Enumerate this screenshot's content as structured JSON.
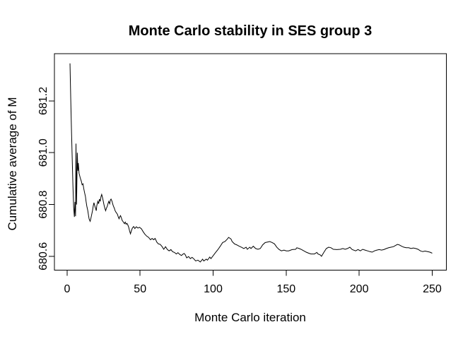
{
  "chart_data": {
    "type": "line",
    "title": "Monte Carlo stability in SES group 3",
    "xlabel": "Monte Carlo iteration",
    "ylabel": "Cumulative average of M",
    "x_ticks": [
      0,
      50,
      100,
      150,
      200,
      250
    ],
    "x_tick_labels": [
      "0",
      "50",
      "100",
      "150",
      "200",
      "250"
    ],
    "y_ticks": [
      680.6,
      680.8,
      681.0,
      681.2
    ],
    "y_tick_labels": [
      "680.6",
      "680.8",
      "681.0",
      "681.2"
    ],
    "xlim": [
      -8.66,
      259.7
    ],
    "ylim": [
      680.5465,
      681.3825
    ],
    "grid": false,
    "legend": "none",
    "line_color": "#000000",
    "axis_color": "#000000",
    "background_color": "#ffffff",
    "series": [
      {
        "name": "cumulative-average-of-M",
        "points": [
          [
            2,
            681.345
          ],
          [
            2.5,
            681.21
          ],
          [
            3,
            681.09
          ],
          [
            3.5,
            680.98
          ],
          [
            4,
            680.875
          ],
          [
            4.5,
            680.79
          ],
          [
            5,
            680.752
          ],
          [
            5.4,
            680.81
          ],
          [
            5.8,
            680.755
          ],
          [
            6.1,
            681.035
          ],
          [
            6.5,
            680.8
          ],
          [
            7,
            681.0
          ],
          [
            7.4,
            680.93
          ],
          [
            7.7,
            680.96
          ],
          [
            8.2,
            680.921
          ],
          [
            9,
            680.903
          ],
          [
            9.8,
            680.889
          ],
          [
            10.3,
            680.876
          ],
          [
            10.9,
            680.88
          ],
          [
            11.4,
            680.862
          ],
          [
            11.9,
            680.848
          ],
          [
            12.6,
            680.83
          ],
          [
            13,
            680.812
          ],
          [
            13.5,
            680.794
          ],
          [
            14.2,
            680.776
          ],
          [
            14.7,
            680.757
          ],
          [
            15.1,
            680.744
          ],
          [
            15.8,
            680.735
          ],
          [
            16.2,
            680.744
          ],
          [
            16.7,
            680.757
          ],
          [
            17.4,
            680.776
          ],
          [
            17.9,
            680.794
          ],
          [
            18.4,
            680.807
          ],
          [
            19,
            680.794
          ],
          [
            19.5,
            680.785
          ],
          [
            20,
            680.776
          ],
          [
            20.3,
            680.794
          ],
          [
            21.1,
            680.812
          ],
          [
            21.6,
            680.803
          ],
          [
            22.2,
            680.821
          ],
          [
            22.7,
            680.812
          ],
          [
            23.2,
            680.83
          ],
          [
            23.7,
            680.839
          ],
          [
            24.3,
            680.826
          ],
          [
            24.8,
            680.812
          ],
          [
            25.3,
            680.798
          ],
          [
            25.9,
            680.785
          ],
          [
            26.4,
            680.776
          ],
          [
            26.9,
            680.785
          ],
          [
            27.6,
            680.794
          ],
          [
            28,
            680.803
          ],
          [
            28.5,
            680.812
          ],
          [
            29.2,
            680.803
          ],
          [
            29.6,
            680.817
          ],
          [
            30.1,
            680.821
          ],
          [
            30.8,
            680.812
          ],
          [
            31.2,
            680.803
          ],
          [
            31.7,
            680.794
          ],
          [
            32.4,
            680.785
          ],
          [
            32.9,
            680.776
          ],
          [
            33.4,
            680.771
          ],
          [
            34,
            680.766
          ],
          [
            34.5,
            680.762
          ],
          [
            35,
            680.753
          ],
          [
            35.6,
            680.745
          ],
          [
            36.1,
            680.753
          ],
          [
            36.6,
            680.757
          ],
          [
            37.2,
            680.748
          ],
          [
            37.7,
            680.739
          ],
          [
            38.2,
            680.735
          ],
          [
            38.8,
            680.73
          ],
          [
            39.3,
            680.726
          ],
          [
            39.8,
            680.732
          ],
          [
            40.4,
            680.724
          ],
          [
            41,
            680.727
          ],
          [
            41.6,
            680.721
          ],
          [
            42.2,
            680.712
          ],
          [
            42.8,
            680.698
          ],
          [
            43.4,
            680.687
          ],
          [
            44,
            680.698
          ],
          [
            44.7,
            680.709
          ],
          [
            45.6,
            680.715
          ],
          [
            46.4,
            680.707
          ],
          [
            47.4,
            680.714
          ],
          [
            48.5,
            680.709
          ],
          [
            49.6,
            680.712
          ],
          [
            50.9,
            680.706
          ],
          [
            52.2,
            680.694
          ],
          [
            53.3,
            680.685
          ],
          [
            54.5,
            680.678
          ],
          [
            55.8,
            680.673
          ],
          [
            57.1,
            680.664
          ],
          [
            58.2,
            680.669
          ],
          [
            59.3,
            680.664
          ],
          [
            60.3,
            680.669
          ],
          [
            61.4,
            680.655
          ],
          [
            62.5,
            680.648
          ],
          [
            63.8,
            680.646
          ],
          [
            65.1,
            680.637
          ],
          [
            66.2,
            680.627
          ],
          [
            67.4,
            680.637
          ],
          [
            68.7,
            680.626
          ],
          [
            69.9,
            680.621
          ],
          [
            71.1,
            680.626
          ],
          [
            72.2,
            680.618
          ],
          [
            73.5,
            680.615
          ],
          [
            74.8,
            680.609
          ],
          [
            75.9,
            680.614
          ],
          [
            77.2,
            680.607
          ],
          [
            78.3,
            680.603
          ],
          [
            79.3,
            680.608
          ],
          [
            80.2,
            680.611
          ],
          [
            81,
            680.605
          ],
          [
            81.9,
            680.594
          ],
          [
            83.2,
            680.599
          ],
          [
            84.4,
            680.591
          ],
          [
            85.6,
            680.596
          ],
          [
            86.8,
            680.59
          ],
          [
            88,
            680.582
          ],
          [
            89.6,
            680.585
          ],
          [
            91.2,
            680.578
          ],
          [
            92.8,
            680.589
          ],
          [
            93.6,
            680.582
          ],
          [
            95.3,
            680.589
          ],
          [
            96.1,
            680.585
          ],
          [
            97.7,
            680.597
          ],
          [
            98.5,
            680.591
          ],
          [
            100.1,
            680.603
          ],
          [
            101.7,
            680.615
          ],
          [
            103.3,
            680.626
          ],
          [
            104.9,
            680.639
          ],
          [
            106.5,
            680.653
          ],
          [
            108.1,
            680.657
          ],
          [
            109.8,
            680.667
          ],
          [
            110.6,
            680.673
          ],
          [
            112.2,
            680.667
          ],
          [
            113,
            680.657
          ],
          [
            114.6,
            680.648
          ],
          [
            116.2,
            680.644
          ],
          [
            117.8,
            680.639
          ],
          [
            119.4,
            680.635
          ],
          [
            121,
            680.63
          ],
          [
            122.6,
            680.635
          ],
          [
            123.4,
            680.627
          ],
          [
            125.1,
            680.635
          ],
          [
            125.9,
            680.63
          ],
          [
            127.5,
            680.639
          ],
          [
            129.1,
            680.63
          ],
          [
            130.7,
            680.627
          ],
          [
            132.3,
            680.63
          ],
          [
            133.9,
            680.644
          ],
          [
            135.6,
            680.653
          ],
          [
            137.2,
            680.655
          ],
          [
            138.8,
            680.657
          ],
          [
            140.4,
            680.653
          ],
          [
            142,
            680.648
          ],
          [
            143.6,
            680.635
          ],
          [
            145.2,
            680.626
          ],
          [
            146.8,
            680.621
          ],
          [
            148.5,
            680.624
          ],
          [
            150.1,
            680.621
          ],
          [
            151.7,
            680.621
          ],
          [
            154.1,
            680.626
          ],
          [
            156.5,
            680.627
          ],
          [
            157.3,
            680.633
          ],
          [
            158.9,
            680.63
          ],
          [
            160.5,
            680.626
          ],
          [
            162.1,
            680.621
          ],
          [
            163.7,
            680.616
          ],
          [
            165.4,
            680.612
          ],
          [
            167,
            680.609
          ],
          [
            169.4,
            680.609
          ],
          [
            171,
            680.615
          ],
          [
            171.8,
            680.609
          ],
          [
            173.4,
            680.605
          ],
          [
            174.2,
            680.6
          ],
          [
            175.8,
            680.615
          ],
          [
            177.5,
            680.63
          ],
          [
            179.1,
            680.635
          ],
          [
            180.7,
            680.633
          ],
          [
            182.3,
            680.627
          ],
          [
            184.7,
            680.626
          ],
          [
            187.1,
            680.627
          ],
          [
            188.8,
            680.63
          ],
          [
            190.4,
            680.627
          ],
          [
            192,
            680.63
          ],
          [
            193.6,
            680.635
          ],
          [
            195.2,
            680.626
          ],
          [
            197.6,
            680.621
          ],
          [
            199.2,
            680.626
          ],
          [
            200.8,
            680.621
          ],
          [
            202.4,
            680.627
          ],
          [
            204,
            680.624
          ],
          [
            205.7,
            680.621
          ],
          [
            207.3,
            680.618
          ],
          [
            208.9,
            680.616
          ],
          [
            210.5,
            680.621
          ],
          [
            212.1,
            680.624
          ],
          [
            213.7,
            680.626
          ],
          [
            215.3,
            680.624
          ],
          [
            216.9,
            680.626
          ],
          [
            218.6,
            680.63
          ],
          [
            220.2,
            680.633
          ],
          [
            221.8,
            680.635
          ],
          [
            223.4,
            680.637
          ],
          [
            225,
            680.642
          ],
          [
            226.2,
            680.646
          ],
          [
            227.4,
            680.644
          ],
          [
            229,
            680.639
          ],
          [
            230.6,
            680.635
          ],
          [
            232.2,
            680.633
          ],
          [
            233.9,
            680.633
          ],
          [
            235.5,
            680.63
          ],
          [
            237.1,
            680.632
          ],
          [
            238.7,
            680.63
          ],
          [
            240.3,
            680.627
          ],
          [
            241.9,
            680.621
          ],
          [
            243.5,
            680.618
          ],
          [
            245.1,
            680.62
          ],
          [
            246.8,
            680.618
          ],
          [
            248.4,
            680.616
          ],
          [
            250,
            680.612
          ]
        ]
      }
    ]
  }
}
